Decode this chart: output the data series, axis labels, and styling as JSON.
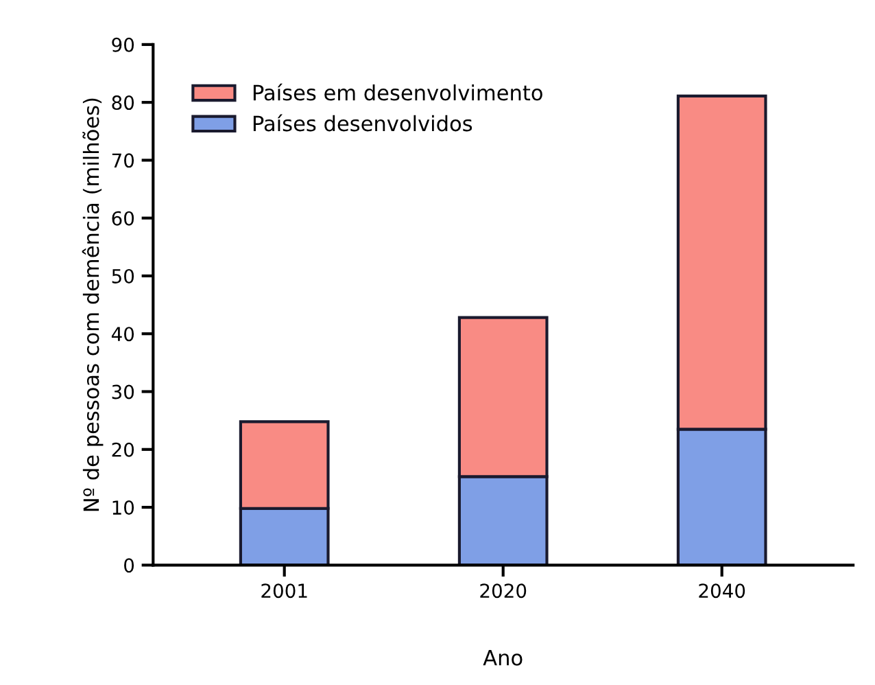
{
  "chart_data": {
    "type": "bar",
    "stacked": true,
    "xlabel": "Ano",
    "ylabel": "Nº de pessoas com demência (milhões)",
    "categories": [
      "2001",
      "2020",
      "2040"
    ],
    "series": [
      {
        "name": "Países desenvolvidos",
        "color": "#7f9fe6",
        "values": [
          9.8,
          15.3,
          23.5
        ]
      },
      {
        "name": "Países em desenvolvimento",
        "color": "#f98b84",
        "values": [
          15.0,
          27.5,
          57.6
        ]
      }
    ],
    "ylim": [
      0,
      90
    ],
    "yticks": [
      0,
      10,
      20,
      30,
      40,
      50,
      60,
      70,
      80,
      90
    ],
    "grid": false,
    "legend": "top left"
  }
}
